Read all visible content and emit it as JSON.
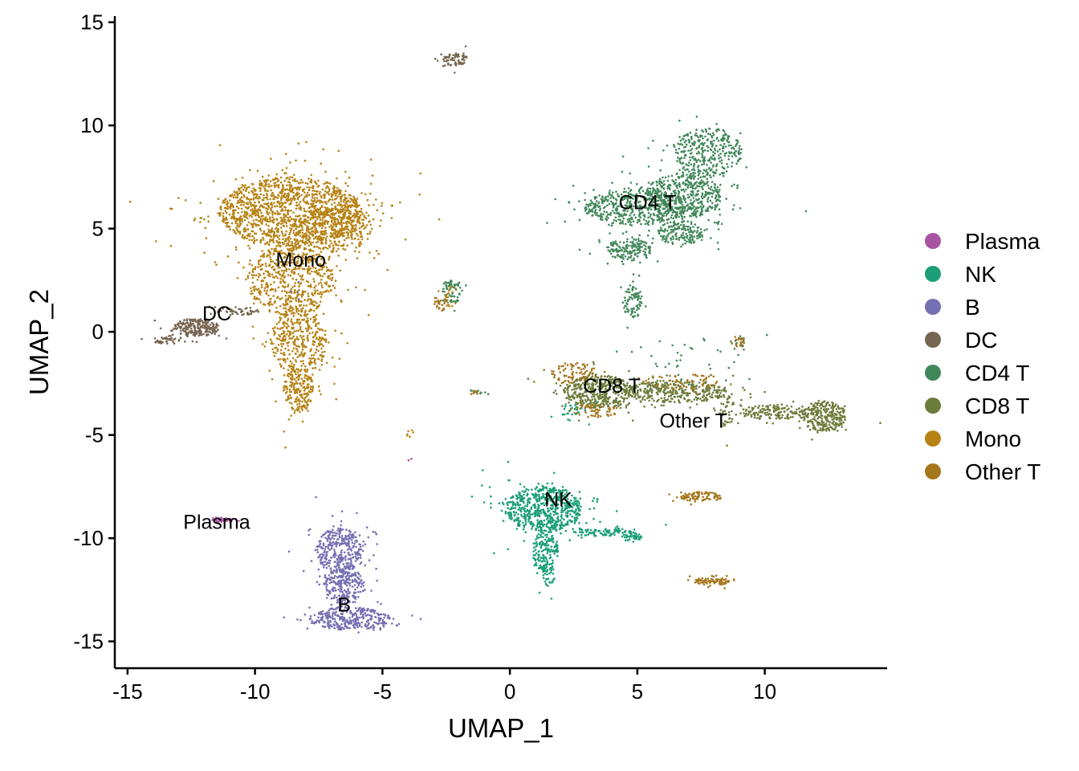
{
  "chart_data": {
    "type": "scatter",
    "xlabel": "UMAP_1",
    "ylabel": "UMAP_2",
    "xlim": [
      -15.5,
      14.8
    ],
    "ylim": [
      -16.3,
      15.3
    ],
    "x_ticks": [
      -15,
      -10,
      -5,
      0,
      5,
      10
    ],
    "x_tick_labels": [
      "-15",
      "-10",
      "-5",
      "0",
      "5",
      "10"
    ],
    "y_ticks": [
      -15,
      -10,
      -5,
      0,
      5,
      10,
      15
    ],
    "y_tick_labels": [
      "-15",
      "-10",
      "-5",
      "0",
      "5",
      "10",
      "15"
    ],
    "grid": false,
    "legend_position": "right",
    "legend": [
      {
        "name": "Plasma",
        "color": "#a753a0"
      },
      {
        "name": "NK",
        "color": "#1b9e77"
      },
      {
        "name": "B",
        "color": "#7570b3"
      },
      {
        "name": "DC",
        "color": "#766550"
      },
      {
        "name": "CD4 T",
        "color": "#41875a"
      },
      {
        "name": "CD8 T",
        "color": "#6c7c3a"
      },
      {
        "name": "Mono",
        "color": "#b78315"
      },
      {
        "name": "Other T",
        "color": "#a6761d"
      }
    ],
    "cluster_labels": [
      {
        "text": "CD4 T",
        "x": 5.4,
        "y": 6.3
      },
      {
        "text": "Mono",
        "x": -8.2,
        "y": 3.5
      },
      {
        "text": "DC",
        "x": -11.5,
        "y": 0.9
      },
      {
        "text": "CD8 T",
        "x": 4.0,
        "y": -2.6
      },
      {
        "text": "Other T",
        "x": 7.2,
        "y": -4.3
      },
      {
        "text": "NK",
        "x": 1.9,
        "y": -8.1
      },
      {
        "text": "Plasma",
        "x": -11.5,
        "y": -9.2
      },
      {
        "text": "B",
        "x": -6.5,
        "y": -13.2
      }
    ],
    "series": [
      {
        "name": "Mono",
        "color": "#b78315",
        "regions": [
          {
            "cx": -8.6,
            "cy": 5.8,
            "rx": 2.8,
            "ry": 1.7,
            "n": 1400
          },
          {
            "cx": -6.9,
            "cy": 5.0,
            "rx": 1.5,
            "ry": 1.1,
            "n": 300
          },
          {
            "cx": -8.6,
            "cy": 2.5,
            "rx": 1.7,
            "ry": 1.7,
            "n": 600
          },
          {
            "cx": -8.3,
            "cy": -0.5,
            "rx": 1.1,
            "ry": 1.6,
            "n": 380
          },
          {
            "cx": -8.3,
            "cy": -2.8,
            "rx": 0.6,
            "ry": 1.1,
            "n": 200
          },
          {
            "cx": -2.3,
            "cy": 1.7,
            "rx": 0.3,
            "ry": 0.5,
            "n": 25
          },
          {
            "cx": -3.9,
            "cy": -4.9,
            "rx": 0.2,
            "ry": 0.2,
            "n": 6
          }
        ]
      },
      {
        "name": "DC",
        "color": "#766550",
        "regions": [
          {
            "cx": -12.3,
            "cy": 0.2,
            "rx": 0.9,
            "ry": 0.45,
            "n": 220
          },
          {
            "cx": -13.4,
            "cy": -0.4,
            "rx": 0.6,
            "ry": 0.2,
            "n": 40
          },
          {
            "cx": -10.7,
            "cy": 1.0,
            "rx": 0.9,
            "ry": 0.2,
            "n": 50
          },
          {
            "cx": -2.2,
            "cy": 13.2,
            "rx": 0.55,
            "ry": 0.3,
            "n": 70
          }
        ]
      },
      {
        "name": "CD4 T",
        "color": "#41875a",
        "regions": [
          {
            "cx": 4.9,
            "cy": 6.0,
            "rx": 2.0,
            "ry": 0.85,
            "n": 500
          },
          {
            "cx": 6.8,
            "cy": 6.6,
            "rx": 1.5,
            "ry": 1.1,
            "n": 450
          },
          {
            "cx": 7.8,
            "cy": 8.7,
            "rx": 1.3,
            "ry": 1.2,
            "n": 330
          },
          {
            "cx": 4.7,
            "cy": 4.0,
            "rx": 0.9,
            "ry": 0.5,
            "n": 160
          },
          {
            "cx": 6.7,
            "cy": 4.8,
            "rx": 0.9,
            "ry": 0.6,
            "n": 160
          },
          {
            "cx": 4.8,
            "cy": 1.4,
            "rx": 0.35,
            "ry": 0.8,
            "n": 90
          },
          {
            "cx": -2.3,
            "cy": 1.9,
            "rx": 0.45,
            "ry": 0.6,
            "n": 55
          },
          {
            "cx": 7.0,
            "cy": -1.8,
            "rx": 3.0,
            "ry": 1.5,
            "n": 45
          },
          {
            "cx": -1.3,
            "cy": -2.9,
            "rx": 0.25,
            "ry": 0.12,
            "n": 12
          }
        ]
      },
      {
        "name": "CD8 T",
        "color": "#6c7c3a",
        "regions": [
          {
            "cx": 3.5,
            "cy": -2.9,
            "rx": 1.4,
            "ry": 0.8,
            "n": 450
          },
          {
            "cx": 6.5,
            "cy": -2.9,
            "rx": 2.0,
            "ry": 0.55,
            "n": 350
          },
          {
            "cx": 12.3,
            "cy": -4.1,
            "rx": 0.9,
            "ry": 0.75,
            "n": 280
          },
          {
            "cx": 10.3,
            "cy": -3.9,
            "rx": 1.3,
            "ry": 0.35,
            "n": 150
          },
          {
            "cx": 8.5,
            "cy": -3.8,
            "rx": 0.3,
            "ry": 0.8,
            "n": 45
          },
          {
            "cx": 9.0,
            "cy": -0.5,
            "rx": 0.25,
            "ry": 0.3,
            "n": 20
          }
        ]
      },
      {
        "name": "Other T",
        "color": "#a6761d",
        "regions": [
          {
            "cx": 3.3,
            "cy": -3.8,
            "rx": 1.0,
            "ry": 0.35,
            "n": 60
          },
          {
            "cx": 2.5,
            "cy": -2.0,
            "rx": 0.9,
            "ry": 0.5,
            "n": 80
          },
          {
            "cx": 6.8,
            "cy": -2.4,
            "rx": 1.6,
            "ry": 0.4,
            "n": 60
          },
          {
            "cx": 7.5,
            "cy": -8.0,
            "rx": 0.8,
            "ry": 0.25,
            "n": 90
          },
          {
            "cx": 7.9,
            "cy": -12.1,
            "rx": 0.7,
            "ry": 0.2,
            "n": 80
          },
          {
            "cx": -2.7,
            "cy": 1.4,
            "rx": 0.3,
            "ry": 0.4,
            "n": 25
          },
          {
            "cx": 9.0,
            "cy": -0.5,
            "rx": 0.2,
            "ry": 0.25,
            "n": 12
          },
          {
            "cx": -1.3,
            "cy": -2.95,
            "rx": 0.2,
            "ry": 0.1,
            "n": 8
          }
        ]
      },
      {
        "name": "NK",
        "color": "#1b9e77",
        "regions": [
          {
            "cx": 1.3,
            "cy": -8.6,
            "rx": 1.5,
            "ry": 1.1,
            "n": 650
          },
          {
            "cx": 1.4,
            "cy": -10.6,
            "rx": 0.5,
            "ry": 1.0,
            "n": 150
          },
          {
            "cx": 1.5,
            "cy": -11.8,
            "rx": 0.25,
            "ry": 0.6,
            "n": 40
          },
          {
            "cx": 3.7,
            "cy": -9.7,
            "rx": 1.2,
            "ry": 0.2,
            "n": 90
          },
          {
            "cx": 4.8,
            "cy": -9.95,
            "rx": 0.4,
            "ry": 0.2,
            "n": 40
          },
          {
            "cx": 2.5,
            "cy": -3.9,
            "rx": 0.5,
            "ry": 0.5,
            "n": 25
          }
        ]
      },
      {
        "name": "B",
        "color": "#7570b3",
        "regions": [
          {
            "cx": -6.7,
            "cy": -10.6,
            "rx": 0.9,
            "ry": 1.1,
            "n": 350
          },
          {
            "cx": -6.5,
            "cy": -12.3,
            "rx": 0.8,
            "ry": 0.9,
            "n": 250
          },
          {
            "cx": -6.3,
            "cy": -13.9,
            "rx": 1.6,
            "ry": 0.55,
            "n": 320
          },
          {
            "cx": -8.4,
            "cy": 2.0,
            "rx": 0.5,
            "ry": 0.5,
            "n": 4
          }
        ]
      },
      {
        "name": "Plasma",
        "color": "#a753a0",
        "regions": [
          {
            "cx": -11.3,
            "cy": -9.1,
            "rx": 0.45,
            "ry": 0.12,
            "n": 40
          },
          {
            "cx": -3.9,
            "cy": -6.2,
            "rx": 0.1,
            "ry": 0.1,
            "n": 2
          }
        ]
      }
    ]
  }
}
